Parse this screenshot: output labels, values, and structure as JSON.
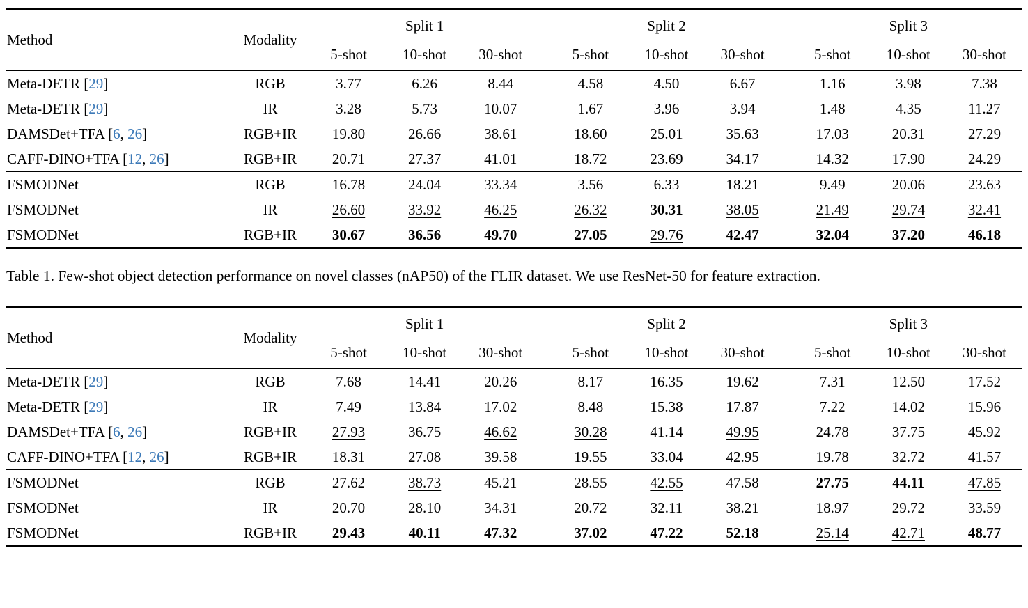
{
  "page": {
    "background": "#ffffff",
    "text_color": "#000000",
    "cite_color": "#3d7ab8"
  },
  "tables": [
    {
      "name": "results-table-1",
      "header": {
        "method": "Method",
        "modality": "Modality",
        "splits": [
          "Split 1",
          "Split 2",
          "Split 3"
        ],
        "shots": [
          "5-shot",
          "10-shot",
          "30-shot"
        ]
      },
      "groups": [
        {
          "rows": [
            {
              "method": "Meta-DETR",
              "cites": [
                "29"
              ],
              "modality": "RGB",
              "values": [
                "3.77",
                "6.26",
                "8.44",
                "4.58",
                "4.50",
                "6.67",
                "1.16",
                "3.98",
                "7.38"
              ],
              "styles": [
                "",
                "",
                "",
                "",
                "",
                "",
                "",
                "",
                ""
              ]
            },
            {
              "method": "Meta-DETR",
              "cites": [
                "29"
              ],
              "modality": "IR",
              "values": [
                "3.28",
                "5.73",
                "10.07",
                "1.67",
                "3.96",
                "3.94",
                "1.48",
                "4.35",
                "11.27"
              ],
              "styles": [
                "",
                "",
                "",
                "",
                "",
                "",
                "",
                "",
                ""
              ]
            },
            {
              "method": "DAMSDet+TFA",
              "cites": [
                "6",
                "26"
              ],
              "modality": "RGB+IR",
              "values": [
                "19.80",
                "26.66",
                "38.61",
                "18.60",
                "25.01",
                "35.63",
                "17.03",
                "20.31",
                "27.29"
              ],
              "styles": [
                "",
                "",
                "",
                "",
                "",
                "",
                "",
                "",
                ""
              ]
            },
            {
              "method": "CAFF-DINO+TFA",
              "cites": [
                "12",
                "26"
              ],
              "modality": "RGB+IR",
              "values": [
                "20.71",
                "27.37",
                "41.01",
                "18.72",
                "23.69",
                "34.17",
                "14.32",
                "17.90",
                "24.29"
              ],
              "styles": [
                "",
                "",
                "",
                "",
                "",
                "",
                "",
                "",
                ""
              ]
            }
          ]
        },
        {
          "rows": [
            {
              "method": "FSMODNet",
              "cites": [],
              "modality": "RGB",
              "values": [
                "16.78",
                "24.04",
                "33.34",
                "3.56",
                "6.33",
                "18.21",
                "9.49",
                "20.06",
                "23.63"
              ],
              "styles": [
                "",
                "",
                "",
                "",
                "",
                "",
                "",
                "",
                ""
              ]
            },
            {
              "method": "FSMODNet",
              "cites": [],
              "modality": "IR",
              "values": [
                "26.60",
                "33.92",
                "46.25",
                "26.32",
                "30.31",
                "38.05",
                "21.49",
                "29.74",
                "32.41"
              ],
              "styles": [
                "u",
                "u",
                "u",
                "u",
                "b",
                "u",
                "u",
                "u",
                "u"
              ]
            },
            {
              "method": "FSMODNet",
              "cites": [],
              "modality": "RGB+IR",
              "values": [
                "30.67",
                "36.56",
                "49.70",
                "27.05",
                "29.76",
                "42.47",
                "32.04",
                "37.20",
                "46.18"
              ],
              "styles": [
                "b",
                "b",
                "b",
                "b",
                "u",
                "b",
                "b",
                "b",
                "b"
              ]
            }
          ]
        }
      ],
      "caption": "Table 1. Few-shot object detection performance on novel classes (nAP50) of the FLIR dataset. We use ResNet-50 for feature extraction."
    },
    {
      "name": "results-table-2",
      "header": {
        "method": "Method",
        "modality": "Modality",
        "splits": [
          "Split 1",
          "Split 2",
          "Split 3"
        ],
        "shots": [
          "5-shot",
          "10-shot",
          "30-shot"
        ]
      },
      "groups": [
        {
          "rows": [
            {
              "method": "Meta-DETR",
              "cites": [
                "29"
              ],
              "modality": "RGB",
              "values": [
                "7.68",
                "14.41",
                "20.26",
                "8.17",
                "16.35",
                "19.62",
                "7.31",
                "12.50",
                "17.52"
              ],
              "styles": [
                "",
                "",
                "",
                "",
                "",
                "",
                "",
                "",
                ""
              ]
            },
            {
              "method": "Meta-DETR",
              "cites": [
                "29"
              ],
              "modality": "IR",
              "values": [
                "7.49",
                "13.84",
                "17.02",
                "8.48",
                "15.38",
                "17.87",
                "7.22",
                "14.02",
                "15.96"
              ],
              "styles": [
                "",
                "",
                "",
                "",
                "",
                "",
                "",
                "",
                ""
              ]
            },
            {
              "method": "DAMSDet+TFA",
              "cites": [
                "6",
                "26"
              ],
              "modality": "RGB+IR",
              "values": [
                "27.93",
                "36.75",
                "46.62",
                "30.28",
                "41.14",
                "49.95",
                "24.78",
                "37.75",
                "45.92"
              ],
              "styles": [
                "u",
                "",
                "u",
                "u",
                "",
                "u",
                "",
                "",
                ""
              ]
            },
            {
              "method": "CAFF-DINO+TFA",
              "cites": [
                "12",
                "26"
              ],
              "modality": "RGB+IR",
              "values": [
                "18.31",
                "27.08",
                "39.58",
                "19.55",
                "33.04",
                "42.95",
                "19.78",
                "32.72",
                "41.57"
              ],
              "styles": [
                "",
                "",
                "",
                "",
                "",
                "",
                "",
                "",
                ""
              ]
            }
          ]
        },
        {
          "rows": [
            {
              "method": "FSMODNet",
              "cites": [],
              "modality": "RGB",
              "values": [
                "27.62",
                "38.73",
                "45.21",
                "28.55",
                "42.55",
                "47.58",
                "27.75",
                "44.11",
                "47.85"
              ],
              "styles": [
                "",
                "u",
                "",
                "",
                "u",
                "",
                "b",
                "b",
                "u"
              ]
            },
            {
              "method": "FSMODNet",
              "cites": [],
              "modality": "IR",
              "values": [
                "20.70",
                "28.10",
                "34.31",
                "20.72",
                "32.11",
                "38.21",
                "18.97",
                "29.72",
                "33.59"
              ],
              "styles": [
                "",
                "",
                "",
                "",
                "",
                "",
                "",
                "",
                ""
              ]
            },
            {
              "method": "FSMODNet",
              "cites": [],
              "modality": "RGB+IR",
              "values": [
                "29.43",
                "40.11",
                "47.32",
                "37.02",
                "47.22",
                "52.18",
                "25.14",
                "42.71",
                "48.77"
              ],
              "styles": [
                "b",
                "b",
                "b",
                "b",
                "b",
                "b",
                "u",
                "u",
                "b"
              ]
            }
          ]
        }
      ],
      "caption": ""
    }
  ]
}
